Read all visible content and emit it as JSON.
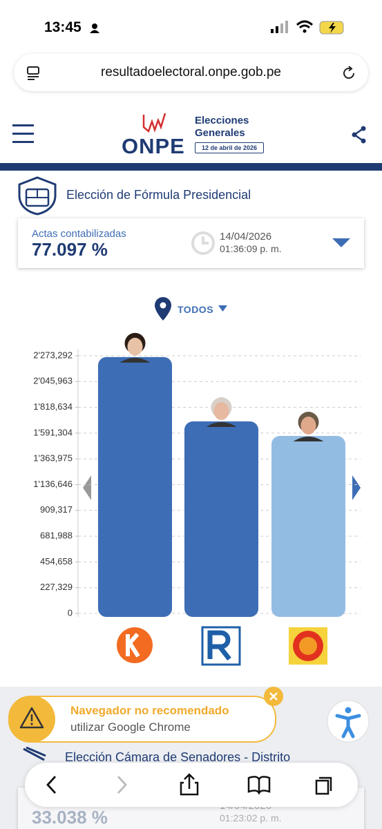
{
  "status": {
    "time": "13:45"
  },
  "browser": {
    "url": "resultadoelectoral.onpe.gob.pe"
  },
  "header": {
    "logo": "ONPE",
    "title_line1": "Elecciones",
    "title_line2": "Generales",
    "date": "12 de abril de 2026"
  },
  "section": {
    "title": "Elección de Fórmula Presidencial",
    "actas_label": "Actas contabilizadas",
    "actas_value": "77.097 %",
    "update_date": "14/04/2026",
    "update_time": "01:36:09 p. m.",
    "filter": "TODOS"
  },
  "chart_data": {
    "type": "bar",
    "categories": [
      null,
      null,
      null
    ],
    "values": [
      2262000,
      1694000,
      1566000
    ],
    "colors": [
      "#3d6db5",
      "#3d6db5",
      "#93bce3"
    ],
    "ylim": [
      0,
      2273292
    ],
    "yticks": [
      0,
      {
        "value": 227329,
        "label": "227,329"
      },
      {
        "value": 454658,
        "label": "454,658"
      },
      {
        "value": 681988,
        "label": "681,988"
      },
      {
        "value": 909317,
        "label": "909,317"
      },
      {
        "value": 1136646,
        "label": "1'136,646"
      },
      {
        "value": 1363975,
        "label": "1'363,975"
      },
      {
        "value": 1591304,
        "label": "1'591,304"
      },
      {
        "value": 1818634,
        "label": "1'818,634"
      },
      {
        "value": 2045963,
        "label": "2'045,963"
      },
      {
        "value": 2273292,
        "label": "2'273,292"
      }
    ],
    "grid": true
  },
  "banner": {
    "title": "Navegador no recomendado",
    "text": "utilizar Google Chrome"
  },
  "section2": {
    "title": "Elección Cámara de Senadores - Distrito",
    "actas_value": "33.038 %",
    "update_date": "14/04/2026",
    "update_time": "01:23:02 p. m."
  }
}
